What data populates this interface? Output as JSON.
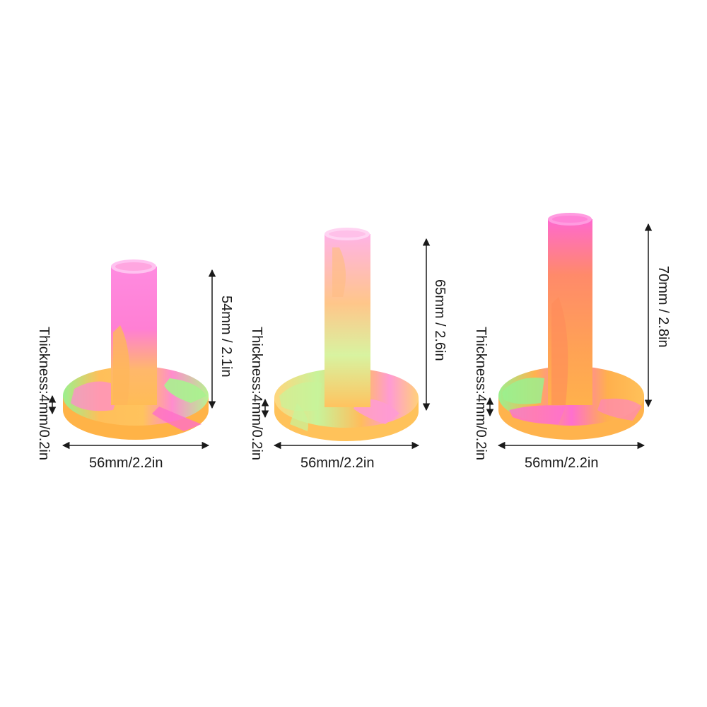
{
  "products": [
    {
      "width_label": "56mm/2.2in",
      "height_label": "54mm / 2.1in",
      "thickness_label": "Thickness:4mm/0.2in",
      "colors": [
        "#ff7bd8",
        "#ffc96b",
        "#9bf08e",
        "#ffb44e"
      ]
    },
    {
      "width_label": "56mm/2.2in",
      "height_label": "65mm / 2.6in",
      "thickness_label": "Thickness:4mm/0.2in",
      "colors": [
        "#ff96d9",
        "#ffd27a",
        "#c9f59a",
        "#ffbe5c"
      ]
    },
    {
      "width_label": "56mm/2.2in",
      "height_label": "70mm / 2.8in",
      "thickness_label": "Thickness:4mm/0.2in",
      "colors": [
        "#ff6ed0",
        "#ffa656",
        "#9bf08e",
        "#ffb84e"
      ]
    }
  ]
}
